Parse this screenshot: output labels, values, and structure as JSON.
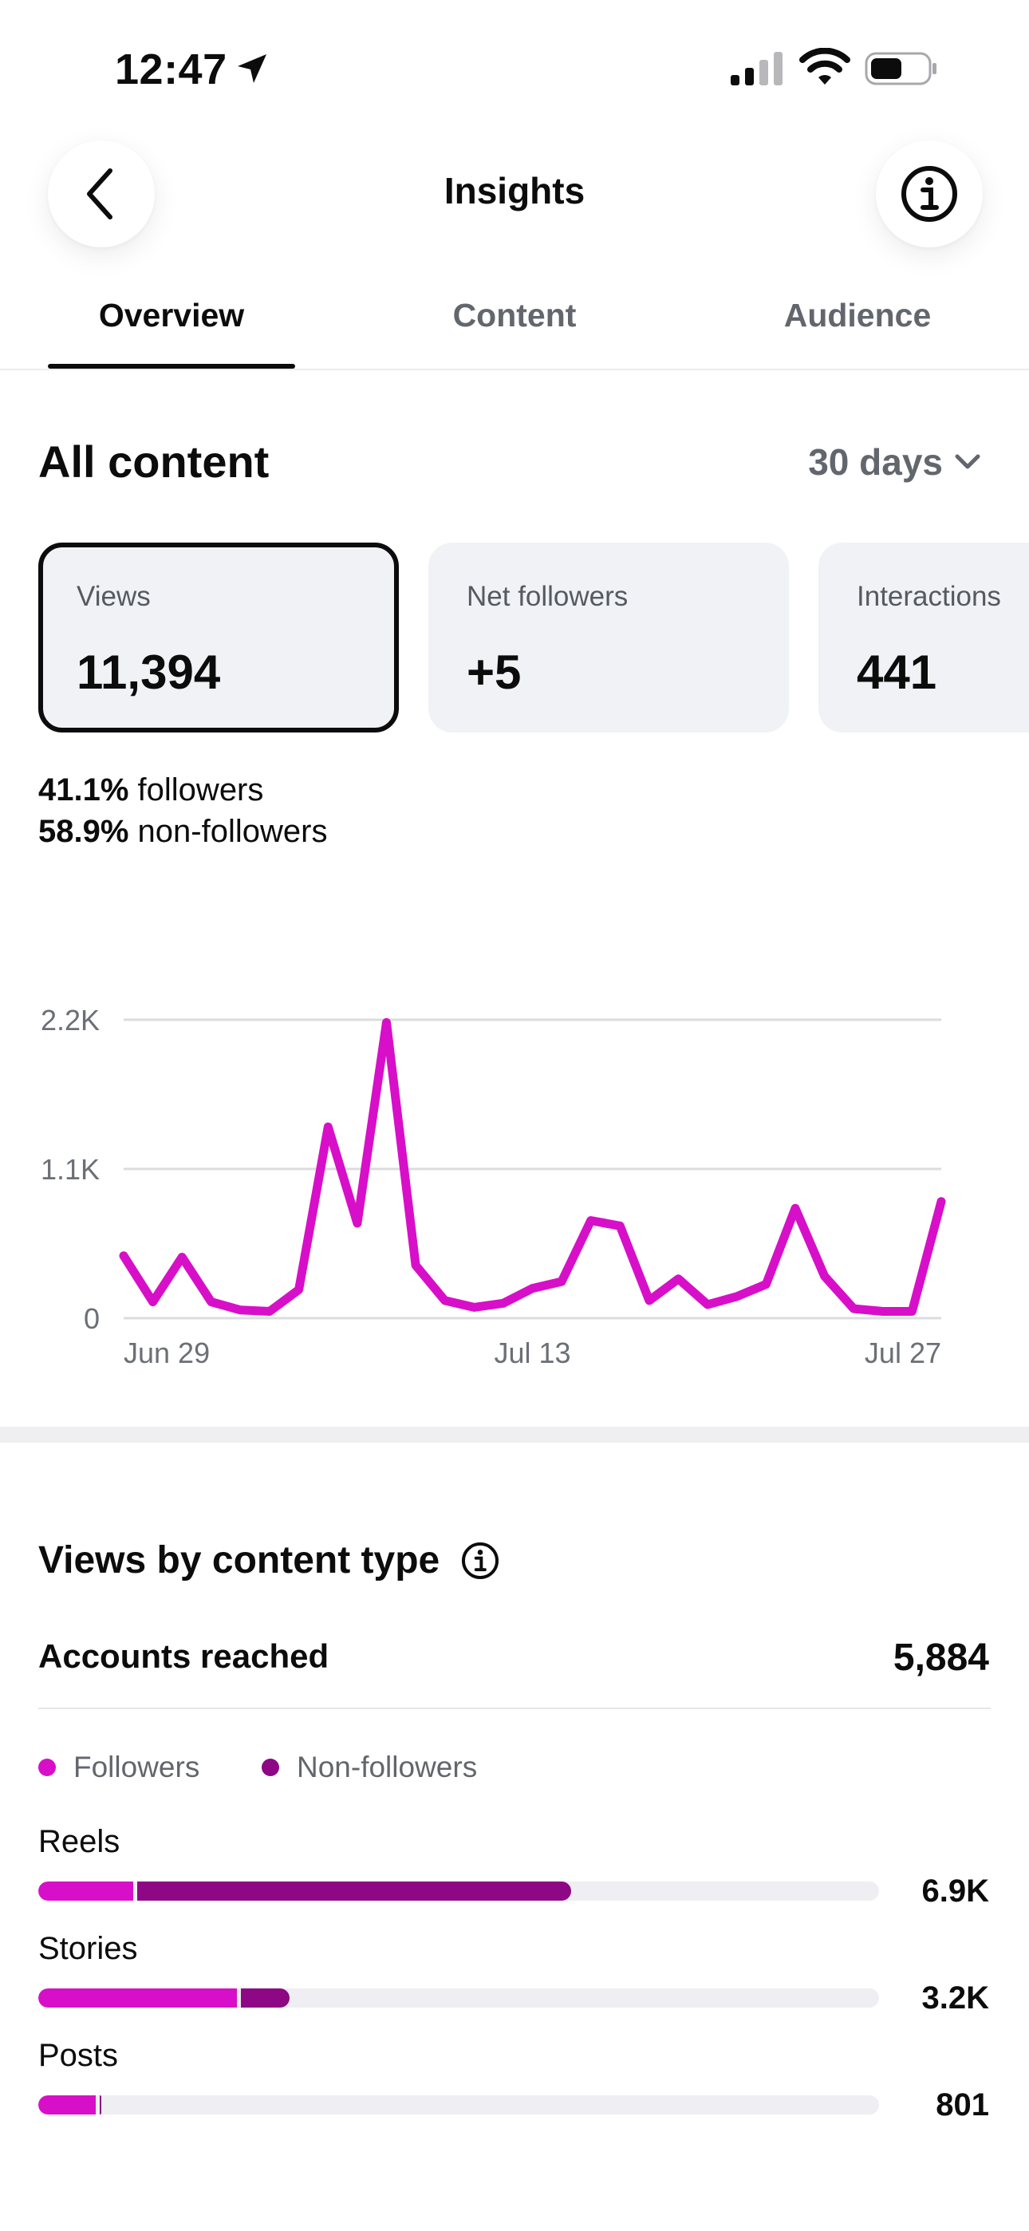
{
  "status_bar": {
    "time": "12:47"
  },
  "header": {
    "title": "Insights"
  },
  "tabs": [
    {
      "label": "Overview",
      "active": true
    },
    {
      "label": "Content",
      "active": false
    },
    {
      "label": "Audience",
      "active": false
    }
  ],
  "overview": {
    "title": "All content",
    "period": "30 days",
    "cards": [
      {
        "label": "Views",
        "value": "11,394",
        "selected": true
      },
      {
        "label": "Net followers",
        "value": "+5",
        "selected": false
      },
      {
        "label": "Interactions",
        "value": "441",
        "selected": false
      }
    ],
    "split": [
      {
        "percent": "41.1%",
        "label": "followers"
      },
      {
        "percent": "58.9%",
        "label": "non-followers"
      }
    ]
  },
  "chart_data": {
    "type": "line",
    "title": "",
    "xlabel": "",
    "ylabel": "",
    "ylim": [
      0,
      2200
    ],
    "y_ticks": [
      "0",
      "1.1K",
      "2.2K"
    ],
    "y_tick_values": [
      0,
      1100,
      2200
    ],
    "x_tick_labels": [
      "Jun 29",
      "Jul 13",
      "Jul 27"
    ],
    "x_tick_indices": [
      0,
      14,
      28
    ],
    "x": [
      "Jun 29",
      "Jun 30",
      "Jul 1",
      "Jul 2",
      "Jul 3",
      "Jul 4",
      "Jul 5",
      "Jul 6",
      "Jul 7",
      "Jul 8",
      "Jul 9",
      "Jul 10",
      "Jul 11",
      "Jul 12",
      "Jul 13",
      "Jul 14",
      "Jul 15",
      "Jul 16",
      "Jul 17",
      "Jul 18",
      "Jul 19",
      "Jul 20",
      "Jul 21",
      "Jul 22",
      "Jul 23",
      "Jul 24",
      "Jul 25",
      "Jul 26",
      "Jul 27"
    ],
    "series": [
      {
        "values": [
          460,
          120,
          450,
          120,
          60,
          50,
          210,
          1410,
          700,
          2180,
          390,
          130,
          80,
          110,
          220,
          270,
          720,
          680,
          130,
          290,
          100,
          160,
          250,
          810,
          310,
          70,
          50,
          50,
          860
        ]
      }
    ],
    "grid": true,
    "color": "#d80fc8"
  },
  "content_type": {
    "title": "Views by content type",
    "accounts_reached_label": "Accounts reached",
    "accounts_reached_value": "5,884",
    "legend": [
      {
        "label": "Followers",
        "color": "#d80fc8"
      },
      {
        "label": "Non-followers",
        "color": "#8e0785"
      }
    ],
    "rows": [
      {
        "label": "Reels",
        "value": "6.9K",
        "followers_fraction": 0.113,
        "non_followers_fraction": 0.521
      },
      {
        "label": "Stories",
        "value": "3.2K",
        "followers_fraction": 0.236,
        "non_followers_fraction": 0.063
      },
      {
        "label": "Posts",
        "value": "801",
        "followers_fraction": 0.068,
        "non_followers_fraction": 0.006
      }
    ]
  }
}
